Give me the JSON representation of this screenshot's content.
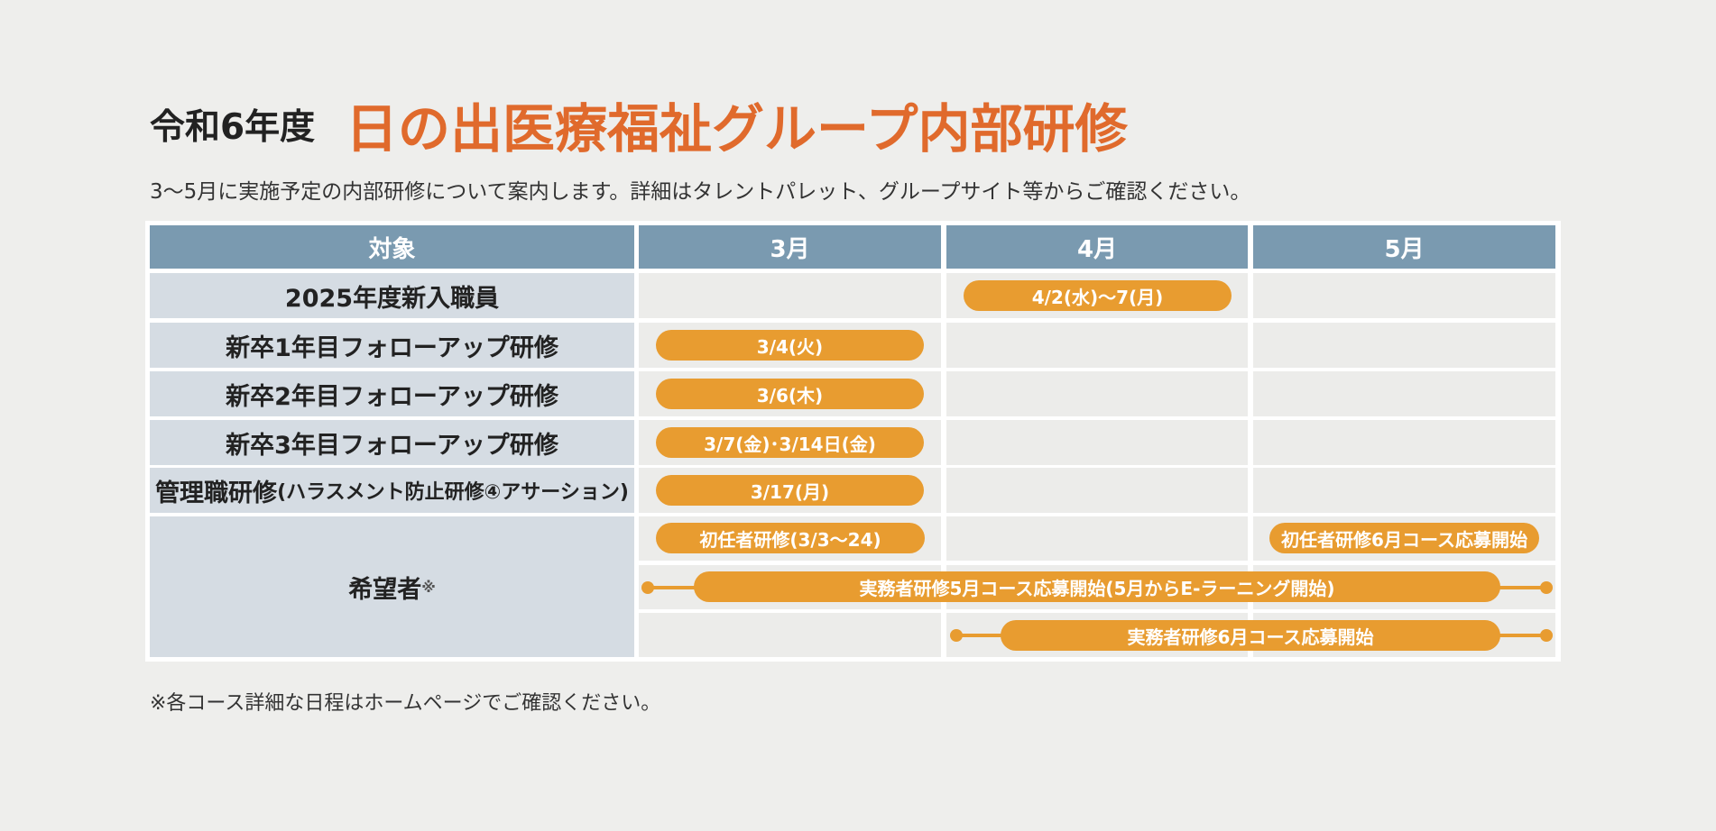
{
  "header": {
    "prefix": "令和6年度",
    "title": "日の出医療福祉グループ内部研修",
    "subtitle": "3～5月に実施予定の内部研修について案内します。詳細はタレントパレット、グループサイト等からご確認ください。"
  },
  "table": {
    "columns": [
      "対象",
      "3月",
      "4月",
      "5月"
    ],
    "rows": [
      {
        "label": "2025年度新入職員",
        "schedule": "4/2(水)～7(月)"
      },
      {
        "label": "新卒1年目フォローアップ研修",
        "schedule": "3/4(火)"
      },
      {
        "label": "新卒2年目フォローアップ研修",
        "schedule": "3/6(木)"
      },
      {
        "label": "新卒3年目フォローアップ研修",
        "schedule": "3/7(金)･3/14日(金)"
      },
      {
        "label": "管理職研修",
        "note": "(ハラスメント防止研修④アサーション)",
        "schedule": "3/17(月)"
      },
      {
        "label": "希望者",
        "mark": "※",
        "schedules": [
          "初任者研修(3/3～24)",
          "初任者研修6月コース応募開始",
          "実務者研修5月コース応募開始(5月からE-ラーニング開始)",
          "実務者研修6月コース応募開始"
        ]
      }
    ]
  },
  "footnote": "※各コース詳細な日程はホームページでご確認ください。"
}
